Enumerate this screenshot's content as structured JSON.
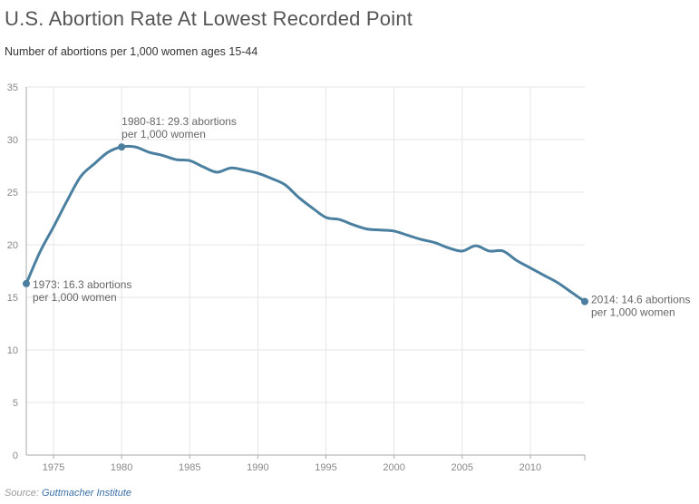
{
  "header": {
    "title": "U.S. Abortion Rate At Lowest Recorded Point",
    "subtitle": "Number of abortions per 1,000 women ages 15-44"
  },
  "footer": {
    "source_prefix": "Source:",
    "source_name": "Guttmacher Institute"
  },
  "colors": {
    "line": "#4a7fa0",
    "grid": "#e6e6e6",
    "axis": "#aaaaaa"
  },
  "chart_data": {
    "type": "line",
    "title": "U.S. Abortion Rate At Lowest Recorded Point",
    "subtitle": "Number of abortions per 1,000 women ages 15-44",
    "xlabel": "",
    "ylabel": "",
    "xlim": [
      1973,
      2014
    ],
    "ylim": [
      0,
      35
    ],
    "x_ticks": [
      1975,
      1980,
      1985,
      1990,
      1995,
      2000,
      2005,
      2010
    ],
    "y_ticks": [
      0,
      5,
      10,
      15,
      20,
      25,
      30,
      35
    ],
    "grid": true,
    "legend": "none",
    "series": [
      {
        "x": [
          1973,
          1974,
          1975,
          1976,
          1977,
          1978,
          1979,
          1980,
          1981,
          1982,
          1983,
          1984,
          1985,
          1986,
          1987,
          1988,
          1989,
          1990,
          1991,
          1992,
          1993,
          1994,
          1995,
          1996,
          1997,
          1998,
          1999,
          2000,
          2001,
          2002,
          2003,
          2004,
          2005,
          2006,
          2007,
          2008,
          2009,
          2010,
          2011,
          2012,
          2013,
          2014
        ],
        "values": [
          16.3,
          19.3,
          21.7,
          24.2,
          26.5,
          27.7,
          28.8,
          29.3,
          29.3,
          28.8,
          28.5,
          28.1,
          28.0,
          27.4,
          26.9,
          27.3,
          27.1,
          26.8,
          26.3,
          25.7,
          24.5,
          23.5,
          22.6,
          22.4,
          21.9,
          21.5,
          21.4,
          21.3,
          20.9,
          20.5,
          20.2,
          19.7,
          19.4,
          19.9,
          19.4,
          19.4,
          18.5,
          17.8,
          17.1,
          16.4,
          15.5,
          14.6
        ]
      }
    ],
    "annotations": [
      {
        "x": 1973,
        "y": 16.3,
        "line1": "1973: 16.3 abortions",
        "line2": "per 1,000 women"
      },
      {
        "x": 1980,
        "y": 29.3,
        "line1": "1980-81: 29.3 abortions",
        "line2": "per 1,000 women"
      },
      {
        "x": 2014,
        "y": 14.6,
        "line1": "2014: 14.6 abortions",
        "line2": "per 1,000 women"
      }
    ]
  }
}
